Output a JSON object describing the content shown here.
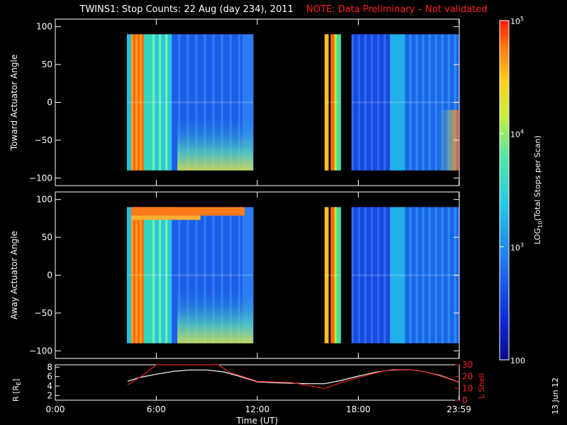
{
  "title": {
    "main": "TWINS1: Stop Counts: 22 Aug (day 234), 2011",
    "note": "NOTE: Data Preliminary – Not validated"
  },
  "date_stamp": "13 Jun 12",
  "colors": {
    "background": "#000000",
    "axes": "#ffffff",
    "note": "#ff2020",
    "r_line": "#ffffff",
    "l_shell_line": "#e02020"
  },
  "colorbar": {
    "label": "LOG10(Total Stops per Scan)",
    "label_prefix": "LOG",
    "label_sub": "10",
    "label_suffix": "(Total Stops per Scan)",
    "ticks": [
      {
        "value": 100,
        "text": "100",
        "base": "",
        "exp": ""
      },
      {
        "value": 1000,
        "text": "",
        "base": "10",
        "exp": "3"
      },
      {
        "value": 10000,
        "text": "",
        "base": "10",
        "exp": "4"
      },
      {
        "value": 100000,
        "text": "",
        "base": "10",
        "exp": "5"
      }
    ],
    "range": [
      100,
      100000
    ],
    "scale": "log"
  },
  "chart_data": [
    {
      "type": "heatmap",
      "ylabel": "Toward Actuator Angle",
      "xlim": [
        0,
        24
      ],
      "ylim": [
        -110,
        110
      ],
      "yticks": [
        -100,
        -50,
        0,
        50,
        100
      ],
      "data_blocks_hours": [
        [
          4.25,
          11.75
        ],
        [
          16.0,
          16.95
        ],
        [
          17.6,
          23.95
        ]
      ]
    },
    {
      "type": "heatmap",
      "ylabel": "Away Actuator Angle",
      "xlim": [
        0,
        24
      ],
      "ylim": [
        -110,
        110
      ],
      "yticks": [
        -100,
        -50,
        0,
        50,
        100
      ],
      "data_blocks_hours": [
        [
          4.25,
          11.75
        ],
        [
          16.0,
          16.95
        ],
        [
          17.6,
          23.95
        ]
      ]
    },
    {
      "type": "line",
      "xlabel": "Time (UT)",
      "xlim": [
        0,
        24
      ],
      "xticks": [
        "0:00",
        "6:00",
        "12:00",
        "18:00",
        "23:59"
      ],
      "xtick_hours": [
        0,
        6,
        12,
        18,
        23.983
      ],
      "ylabel_left": "R (RE)",
      "ylabel_left_prefix": "R [R",
      "ylabel_left_sub": "E",
      "ylabel_left_suffix": "]",
      "ylim_left": [
        1,
        8.5
      ],
      "yticks_left": [
        2,
        4,
        6,
        8
      ],
      "ylabel_right": "L Shell",
      "ylim_right": [
        0,
        30
      ],
      "yticks_right": [
        0,
        10,
        20,
        30
      ],
      "series": [
        {
          "axis": "left",
          "x": [
            4.3,
            5.0,
            6.0,
            7.0,
            8.0,
            9.0,
            10.0,
            11.0,
            12.0,
            13.0,
            14.0,
            15.0,
            16.0,
            17.0,
            18.0,
            19.0,
            20.0,
            21.0,
            22.0,
            23.0,
            23.98
          ],
          "y": [
            5.0,
            5.8,
            6.5,
            7.1,
            7.4,
            7.4,
            7.0,
            6.0,
            4.9,
            4.7,
            4.6,
            4.5,
            4.5,
            5.2,
            6.1,
            6.9,
            7.4,
            7.5,
            7.0,
            6.1,
            4.8
          ]
        },
        {
          "axis": "right",
          "x": [
            4.3,
            5.2,
            6.0,
            9.7,
            10.3,
            12.0,
            14.0,
            16.0,
            17.0,
            18.0,
            19.0,
            20.0,
            21.0,
            22.0,
            23.0,
            23.98
          ],
          "y": [
            13,
            21,
            30,
            30,
            24,
            16,
            15,
            10,
            15,
            19,
            23,
            26,
            26,
            24,
            20,
            15
          ]
        }
      ]
    }
  ]
}
